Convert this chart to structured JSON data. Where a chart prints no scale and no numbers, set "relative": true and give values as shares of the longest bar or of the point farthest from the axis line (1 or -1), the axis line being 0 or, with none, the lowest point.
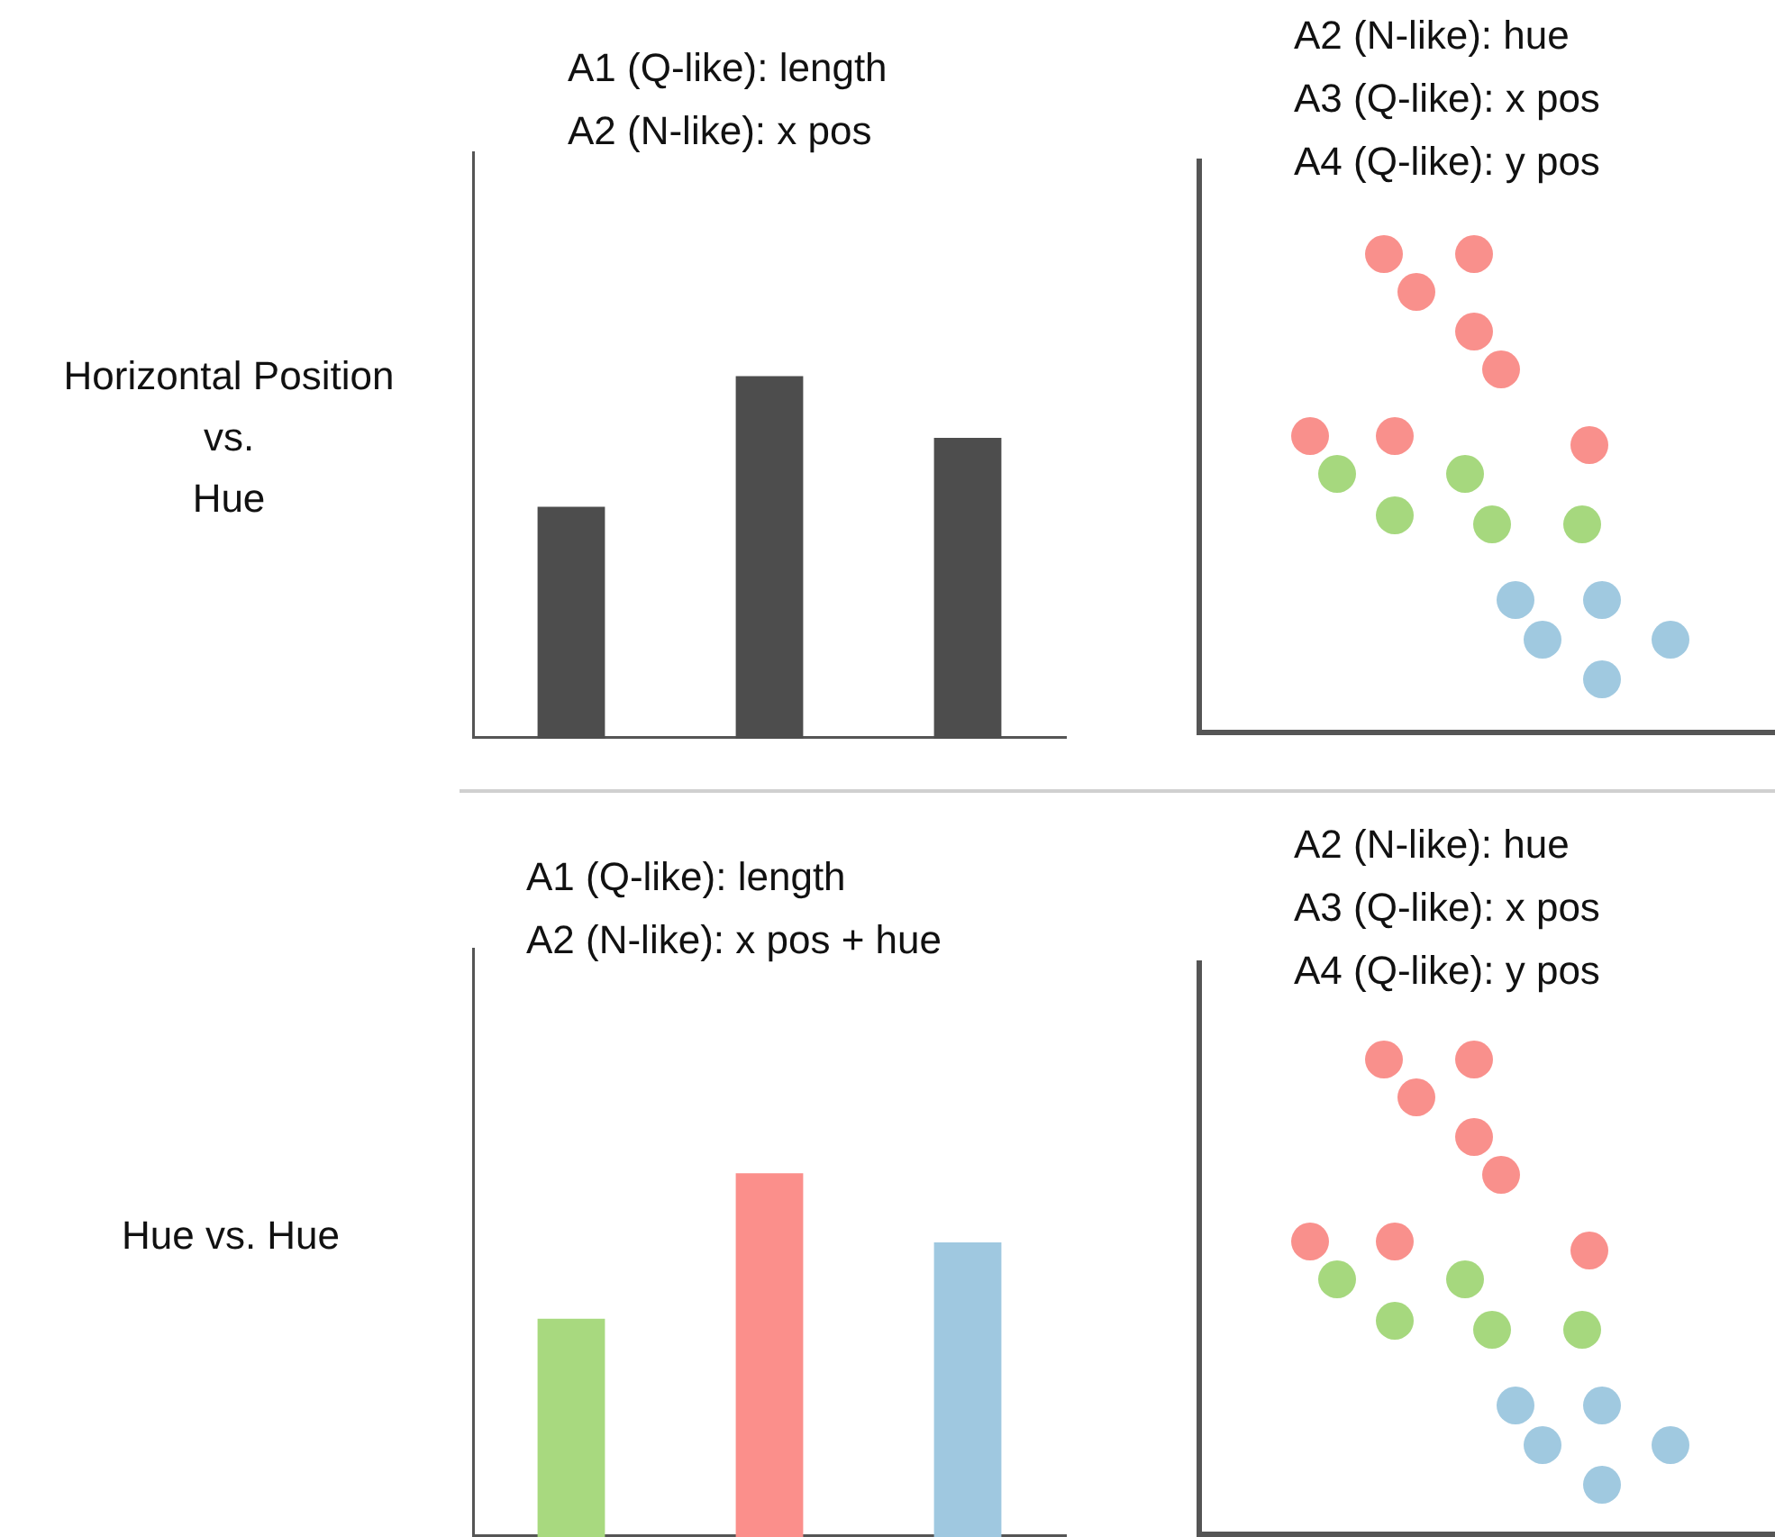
{
  "chart_data": [
    {
      "type": "bar",
      "title": "A1 (Q-like): length\nA2 (N-like): x pos",
      "ylabel": "Horizontal Position\nvs.\nHue",
      "categories": [
        null,
        null,
        null
      ],
      "values": [
        0.64,
        1,
        0.83
      ],
      "color": "#4d4d4d",
      "relative": true
    },
    {
      "type": "other",
      "title": "A2 (N-like): hue\nA3 (Q-like): x pos\nA4 (Q-like): y pos"
    },
    {
      "type": "bar",
      "title": "A1 (Q-like): length\nA2 (N-like): x pos + hue",
      "ylabel": "Hue vs. Hue",
      "categories": [
        null,
        null,
        null
      ],
      "values": [
        0.6,
        1,
        0.81
      ],
      "colors": [
        "#a8d97f",
        "#fb8f8b",
        "#9fc8e0"
      ],
      "relative": true
    },
    {
      "type": "other",
      "title": "A2 (N-like): hue\nA3 (Q-like): x pos\nA4 (Q-like): y pos"
    }
  ]
}
